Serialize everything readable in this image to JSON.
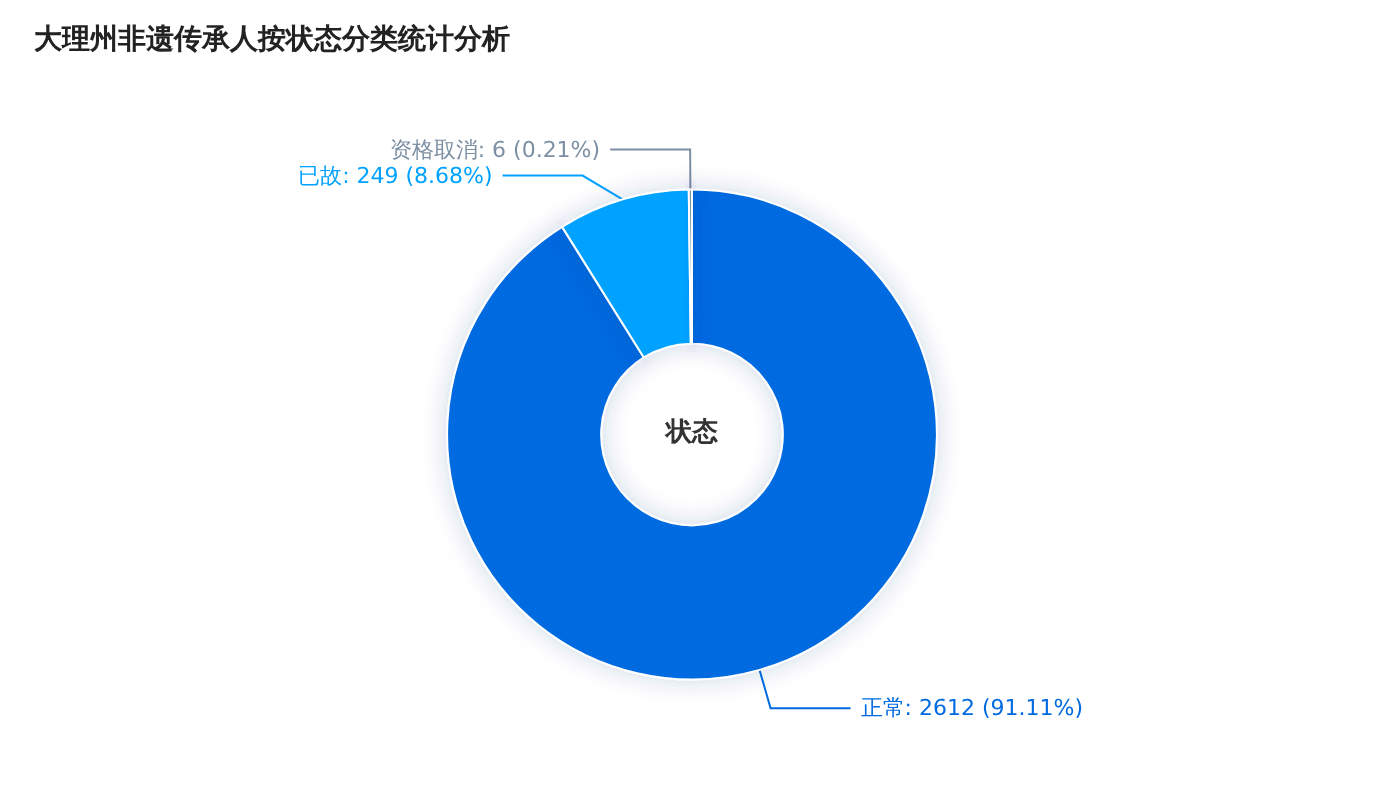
{
  "chart_data": {
    "type": "donut",
    "title": "大理州非遗传承人按状态分类统计分析",
    "categories": [
      "正常",
      "已故",
      "资格取消"
    ],
    "values": [
      2612,
      249,
      6
    ],
    "value_labels": [
      "2612 (91.11%)",
      "249 (8.68%)",
      "6 (0.21%)"
    ],
    "colors": [
      "#006be0",
      "#00a2ff",
      "#7d8fa3"
    ],
    "annotations": [
      "状态"
    ],
    "legend": false
  }
}
